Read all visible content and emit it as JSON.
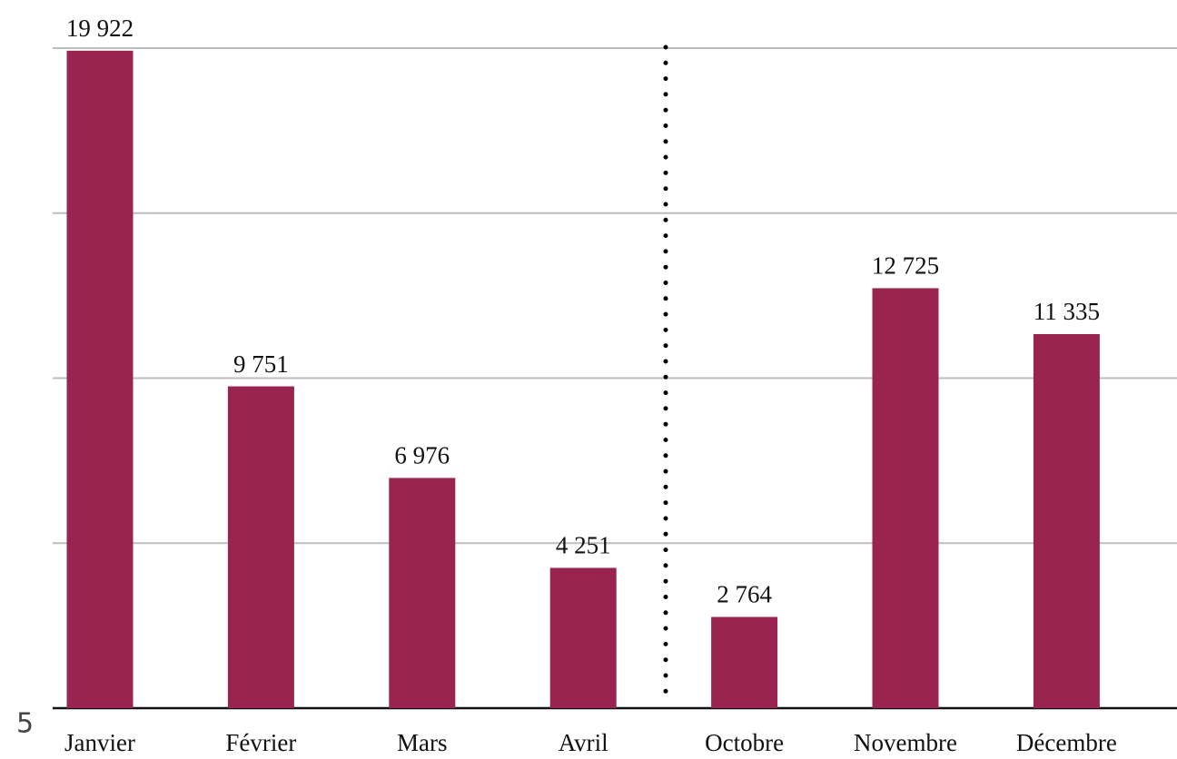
{
  "chart_data": {
    "type": "bar",
    "categories": [
      "Janvier",
      "Février",
      "Mars",
      "Avril",
      "Octobre",
      "Novembre",
      "Décembre"
    ],
    "values": [
      19922,
      9751,
      6976,
      4251,
      2764,
      12725,
      11335
    ],
    "value_labels": [
      "19 922",
      "9 751",
      "6 976",
      "4 251",
      "2 764",
      "12 725",
      "11 335"
    ],
    "color": "#9a2450",
    "ylim": [
      0,
      20000
    ],
    "yticks": [
      0,
      5000,
      10000,
      15000,
      20000
    ],
    "grid": true
  },
  "page_number": "5"
}
